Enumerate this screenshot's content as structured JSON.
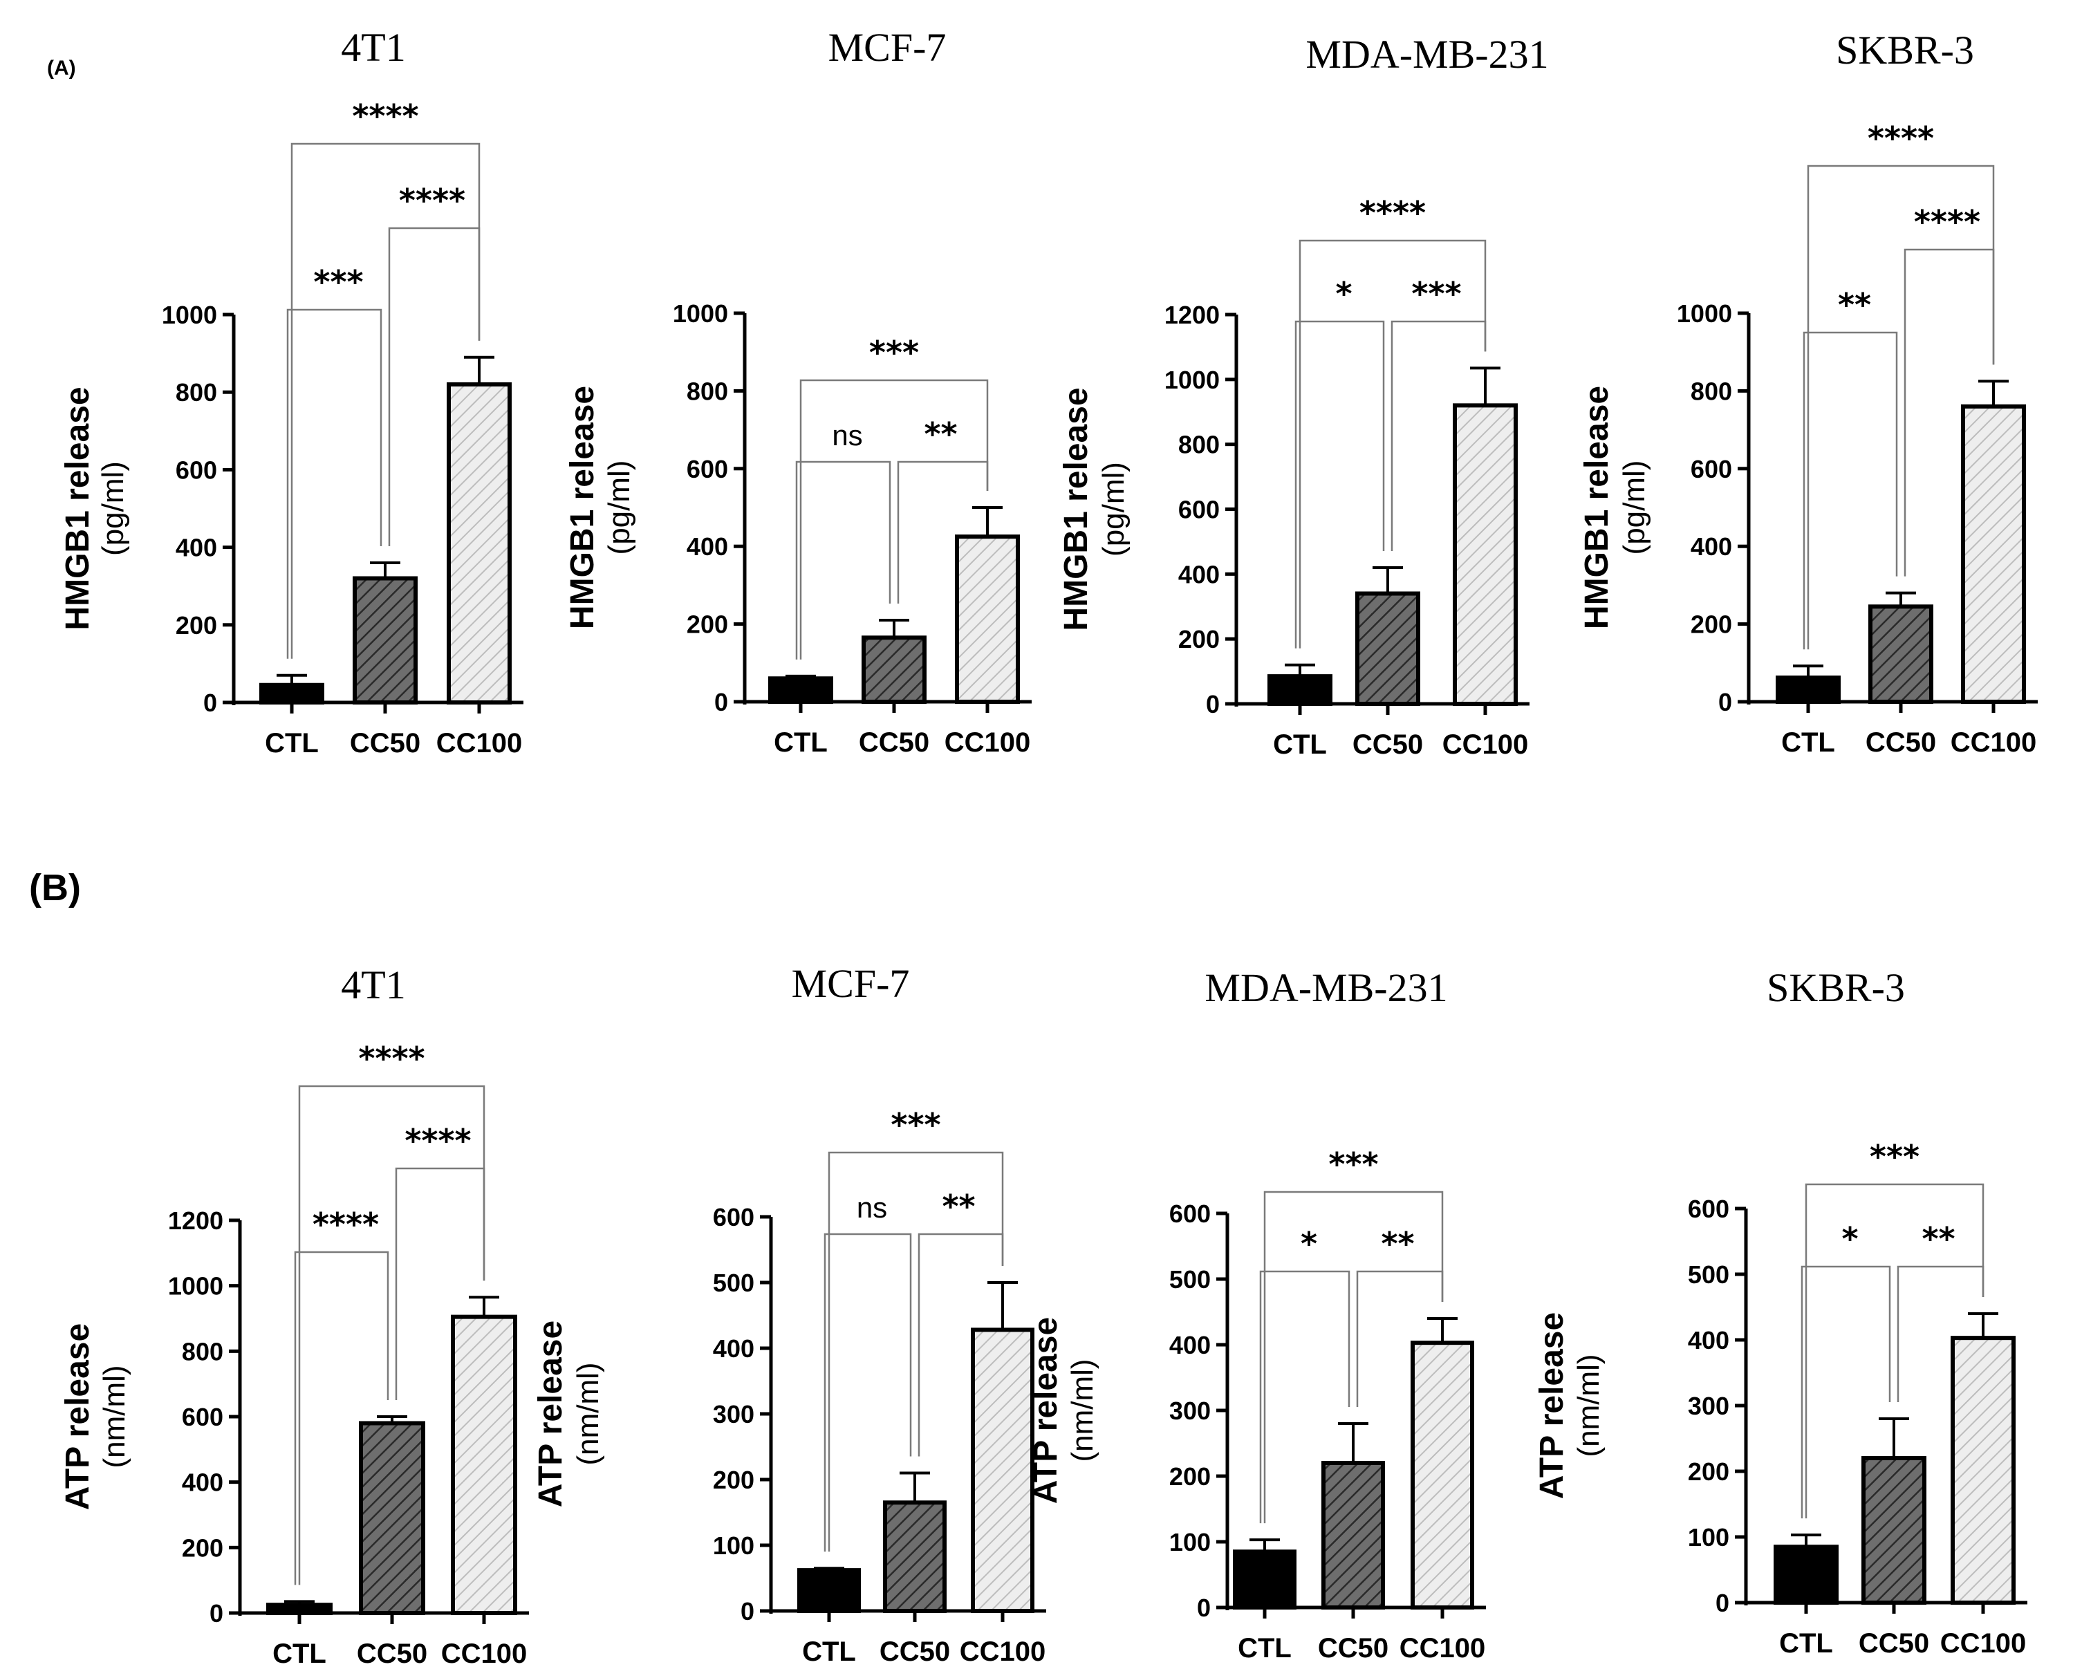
{
  "figure": {
    "panel_a_label": "(A)",
    "panel_b_label": "(B)"
  },
  "colors": {
    "ctl": "#000000",
    "cc50": "#6e6e6e",
    "cc100": "#e6e6e6",
    "axis": "#000000",
    "bracket": "#7a7a7a"
  },
  "chart_data": [
    {
      "type": "bar",
      "panel": "A",
      "title": "4T1",
      "categories": [
        "CTL",
        "CC50",
        "CC100"
      ],
      "values": [
        45,
        320,
        820
      ],
      "errors": [
        25,
        40,
        70
      ],
      "ylabel": "HMGB1 release",
      "yunit": "(pg/ml)",
      "ylim": [
        0,
        1000
      ],
      "yticks": [
        0,
        200,
        400,
        600,
        800,
        1000
      ],
      "yticklabels": [
        "0",
        "200",
        "400",
        "600",
        "800",
        "1000"
      ],
      "comparisons": [
        {
          "from": 0,
          "to": 1,
          "label": "***"
        },
        {
          "from": 1,
          "to": 2,
          "label": "****"
        },
        {
          "from": 0,
          "to": 2,
          "label": "****"
        }
      ]
    },
    {
      "type": "bar",
      "panel": "A",
      "title": "MCF-7",
      "categories": [
        "CTL",
        "CC50",
        "CC100"
      ],
      "values": [
        60,
        165,
        425
      ],
      "errors": [
        6,
        45,
        75
      ],
      "ylabel": "HMGB1 release",
      "yunit": "(pg/ml)",
      "ylim": [
        0,
        1000
      ],
      "yticks": [
        0,
        200,
        400,
        600,
        800,
        1000
      ],
      "yticklabels": [
        "0",
        "200",
        "400",
        "600",
        "800",
        "1000"
      ],
      "comparisons": [
        {
          "from": 0,
          "to": 1,
          "label": "ns"
        },
        {
          "from": 1,
          "to": 2,
          "label": "**"
        },
        {
          "from": 0,
          "to": 2,
          "label": "***"
        }
      ]
    },
    {
      "type": "bar",
      "panel": "A",
      "title": "MDA-MB-231",
      "categories": [
        "CTL",
        "CC50",
        "CC100"
      ],
      "values": [
        85,
        340,
        920
      ],
      "errors": [
        35,
        80,
        115
      ],
      "ylabel": "HMGB1 release",
      "yunit": "(pg/ml)",
      "ylim": [
        0,
        1200
      ],
      "yticks": [
        0,
        200,
        400,
        600,
        800,
        1000,
        1200
      ],
      "yticklabels": [
        "0",
        "200",
        "400",
        "600",
        "800",
        "1000",
        "1200"
      ],
      "comparisons": [
        {
          "from": 0,
          "to": 1,
          "label": "*"
        },
        {
          "from": 1,
          "to": 2,
          "label": "***"
        },
        {
          "from": 0,
          "to": 2,
          "label": "****"
        }
      ]
    },
    {
      "type": "bar",
      "panel": "A",
      "title": "SKBR-3",
      "categories": [
        "CTL",
        "CC50",
        "CC100"
      ],
      "values": [
        62,
        245,
        760
      ],
      "errors": [
        30,
        35,
        65
      ],
      "ylabel": "HMGB1 release",
      "yunit": "(pg/ml)",
      "ylim": [
        0,
        1000
      ],
      "yticks": [
        0,
        200,
        400,
        600,
        800,
        1000
      ],
      "yticklabels": [
        "0",
        "200",
        "400",
        "600",
        "800",
        "1000"
      ],
      "comparisons": [
        {
          "from": 0,
          "to": 1,
          "label": "**"
        },
        {
          "from": 1,
          "to": 2,
          "label": "****"
        },
        {
          "from": 0,
          "to": 2,
          "label": "****"
        }
      ]
    },
    {
      "type": "bar",
      "panel": "B",
      "title": "4T1",
      "categories": [
        "CTL",
        "CC50",
        "CC100"
      ],
      "values": [
        25,
        580,
        905
      ],
      "errors": [
        10,
        20,
        60
      ],
      "ylabel": "ATP release",
      "yunit": "(nm/ml)",
      "ylim": [
        0,
        1200
      ],
      "yticks": [
        0,
        200,
        400,
        600,
        800,
        1000,
        1200
      ],
      "yticklabels": [
        "0",
        "200",
        "400",
        "600",
        "800",
        "1000",
        "1200"
      ],
      "comparisons": [
        {
          "from": 0,
          "to": 1,
          "label": "****"
        },
        {
          "from": 1,
          "to": 2,
          "label": "****"
        },
        {
          "from": 0,
          "to": 2,
          "label": "****"
        }
      ]
    },
    {
      "type": "bar",
      "panel": "B",
      "title": "MCF-7",
      "categories": [
        "CTL",
        "CC50",
        "CC100"
      ],
      "values": [
        62,
        165,
        428
      ],
      "errors": [
        3,
        45,
        72
      ],
      "ylabel": "ATP release",
      "yunit": "(nm/ml)",
      "ylim": [
        0,
        600
      ],
      "yticks": [
        0,
        100,
        200,
        300,
        400,
        500,
        600
      ],
      "yticklabels": [
        "0",
        "100",
        "200",
        "300",
        "400",
        "500",
        "600"
      ],
      "comparisons": [
        {
          "from": 0,
          "to": 1,
          "label": "ns"
        },
        {
          "from": 1,
          "to": 2,
          "label": "**"
        },
        {
          "from": 0,
          "to": 2,
          "label": "***"
        }
      ]
    },
    {
      "type": "bar",
      "panel": "B",
      "title": "MDA-MB-231",
      "categories": [
        "CTL",
        "CC50",
        "CC100"
      ],
      "values": [
        85,
        220,
        403
      ],
      "errors": [
        18,
        60,
        37
      ],
      "ylabel": "ATP release",
      "yunit": "(nm/ml)",
      "ylim": [
        0,
        600
      ],
      "yticks": [
        0,
        100,
        200,
        300,
        400,
        500,
        600
      ],
      "yticklabels": [
        "0",
        "100",
        "200",
        "300",
        "400",
        "500",
        "600"
      ],
      "comparisons": [
        {
          "from": 0,
          "to": 1,
          "label": "*"
        },
        {
          "from": 1,
          "to": 2,
          "label": "**"
        },
        {
          "from": 0,
          "to": 2,
          "label": "***"
        }
      ]
    },
    {
      "type": "bar",
      "panel": "B",
      "title": "SKBR-3",
      "categories": [
        "CTL",
        "CC50",
        "CC100"
      ],
      "values": [
        85,
        220,
        403
      ],
      "errors": [
        18,
        60,
        37
      ],
      "ylabel": "ATP release",
      "yunit": "(nm/ml)",
      "ylim": [
        0,
        600
      ],
      "yticks": [
        0,
        100,
        200,
        300,
        400,
        500,
        600
      ],
      "yticklabels": [
        "0",
        "100",
        "200",
        "300",
        "400",
        "500",
        "600"
      ],
      "comparisons": [
        {
          "from": 0,
          "to": 1,
          "label": "*"
        },
        {
          "from": 1,
          "to": 2,
          "label": "**"
        },
        {
          "from": 0,
          "to": 2,
          "label": "***"
        }
      ]
    }
  ]
}
